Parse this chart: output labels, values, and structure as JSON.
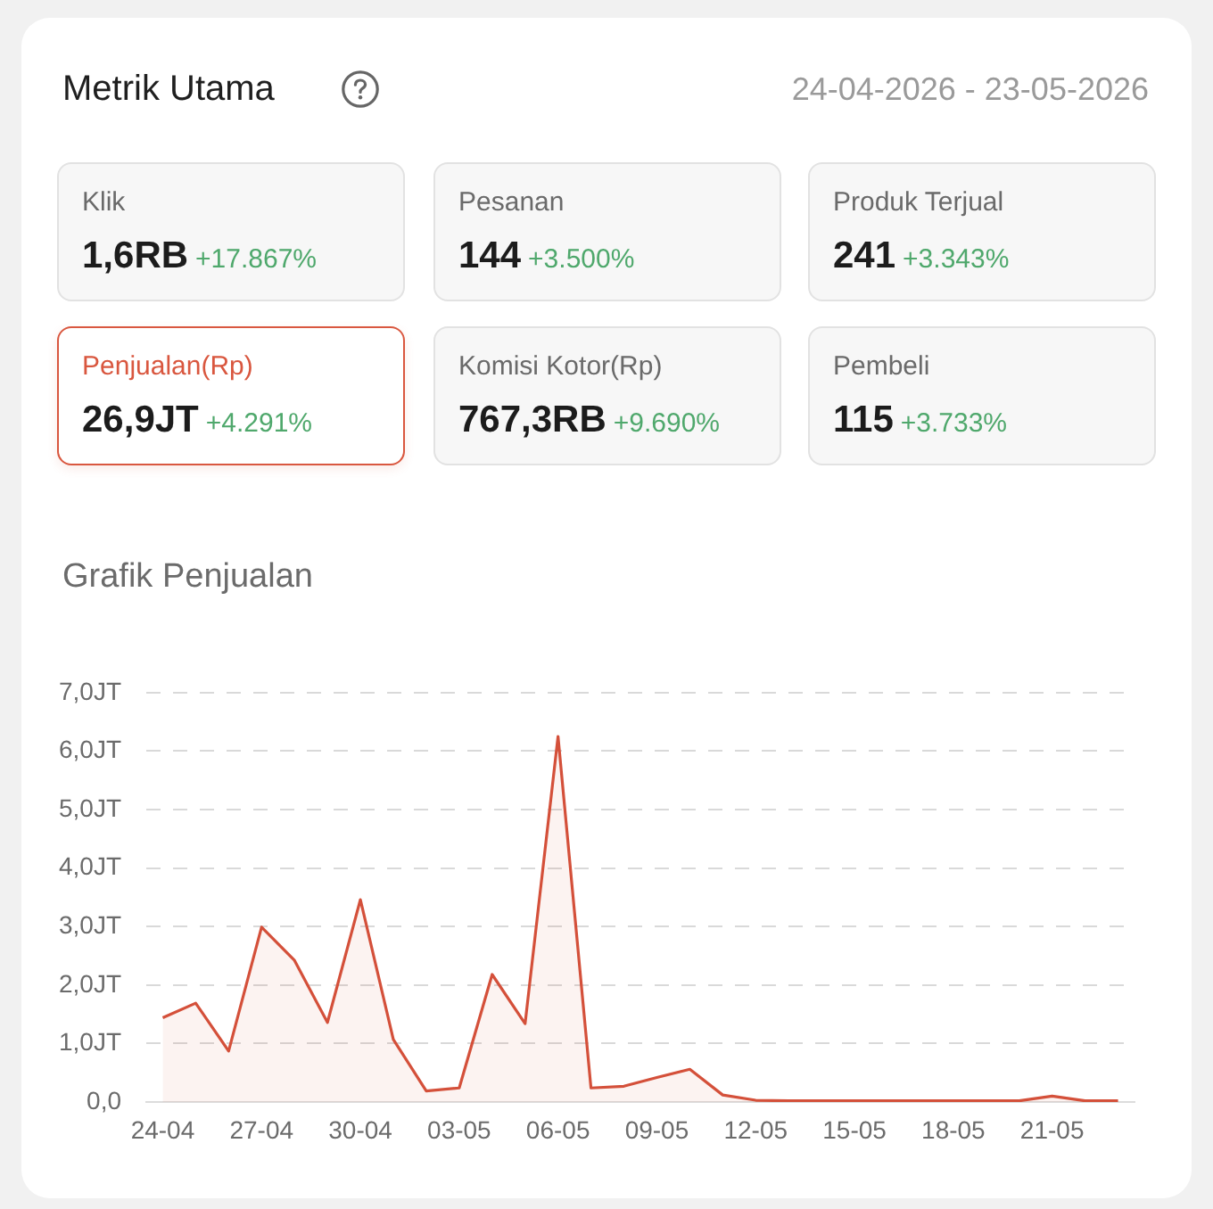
{
  "chart_data": [
    {
      "type": "other",
      "title": "Metrik Utama",
      "subtitle": "24-04-2026 - 23-05-2026",
      "annotations": [
        "Klik",
        "1,6RB",
        "+17.867%",
        "Pesanan",
        "144",
        "+3.500%",
        "Produk Terjual",
        "241",
        "+3.343%",
        "Penjualan(Rp)",
        "26,9JT",
        "+4.291%",
        "Komisi Kotor(Rp)",
        "767,3RB",
        "+9.690%",
        "Pembeli",
        "115",
        "+3.733%"
      ]
    },
    {
      "type": "area",
      "title": "Grafik Penjualan",
      "categories": [
        "24-04",
        null,
        null,
        "27-04",
        null,
        null,
        "30-04",
        null,
        null,
        "03-05",
        null,
        null,
        "06-05",
        null,
        null,
        "09-05",
        null,
        null,
        "12-05",
        null,
        null,
        "15-05",
        null,
        null,
        "18-05",
        null,
        null,
        "21-05",
        null,
        null
      ],
      "values": [
        1.44,
        1.69,
        0.87,
        2.99,
        2.42,
        1.36,
        3.46,
        1.07,
        0.19,
        0.24,
        2.18,
        1.34,
        6.25,
        0.24,
        0.27,
        0.42,
        0.56,
        0.12,
        0.03,
        0.02,
        0.02,
        0.02,
        0.02,
        0.02,
        0.02,
        0.02,
        0.02,
        0.1,
        0.02,
        0.02
      ],
      "color": "#d4503a",
      "ylim": [
        0,
        7
      ],
      "yticks": [
        {
          "value": 0,
          "label": "0,0"
        },
        {
          "value": 1,
          "label": "1,0JT"
        },
        {
          "value": 2,
          "label": "2,0JT"
        },
        {
          "value": 3,
          "label": "3,0JT"
        },
        {
          "value": 4,
          "label": "4,0JT"
        },
        {
          "value": 5,
          "label": "5,0JT"
        },
        {
          "value": 6,
          "label": "6,0JT"
        },
        {
          "value": 7,
          "label": "7,0JT"
        }
      ],
      "grid": "y"
    }
  ]
}
